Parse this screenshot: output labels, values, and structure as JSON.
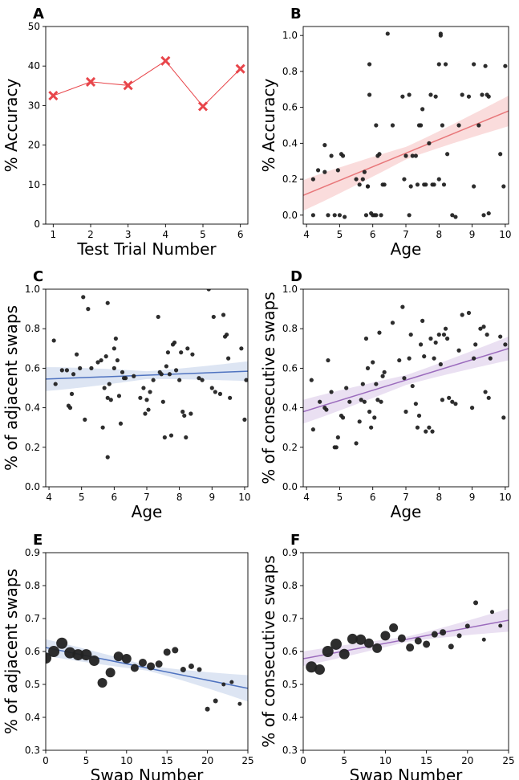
{
  "chart_data": [
    {
      "panel": "A",
      "type": "line",
      "xlabel": "Test Trial Number",
      "ylabel": "% Accuracy",
      "xlim": [
        0.8,
        6.2
      ],
      "ylim": [
        0,
        50
      ],
      "xticks": [
        1,
        2,
        3,
        4,
        5,
        6
      ],
      "yticks": [
        0,
        10,
        20,
        30,
        40,
        50
      ],
      "color": "#e8464b",
      "x": [
        1,
        2,
        3,
        4,
        5,
        6
      ],
      "y": [
        32.5,
        36.0,
        35.1,
        41.3,
        29.8,
        39.3
      ]
    },
    {
      "panel": "B",
      "type": "scatter",
      "xlabel": "Age",
      "ylabel": "% Accuracy",
      "xlim": [
        3.9,
        10.1
      ],
      "ylim": [
        -0.05,
        1.05
      ],
      "xticks": [
        4,
        5,
        6,
        7,
        8,
        9,
        10
      ],
      "yticks": [
        0.0,
        0.2,
        0.4,
        0.6,
        0.8,
        1.0
      ],
      "regression_color": "#e8777a",
      "band_color": "#f6c4c4",
      "regression": {
        "x0": 3.9,
        "y0": 0.11,
        "x1": 10.1,
        "y1": 0.58
      },
      "band_halfwidth": {
        "at_start": 0.085,
        "at_mid": 0.035,
        "at_end": 0.085
      },
      "points": [
        [
          4.2,
          0.2
        ],
        [
          4.2,
          0.0
        ],
        [
          4.35,
          0.25
        ],
        [
          4.55,
          0.39
        ],
        [
          4.55,
          0.24
        ],
        [
          4.65,
          0.0
        ],
        [
          4.75,
          0.33
        ],
        [
          4.85,
          0.0
        ],
        [
          4.95,
          0.25
        ],
        [
          5.0,
          0.0
        ],
        [
          5.05,
          0.34
        ],
        [
          5.1,
          0.33
        ],
        [
          5.15,
          -0.01
        ],
        [
          5.5,
          0.2
        ],
        [
          5.6,
          0.17
        ],
        [
          5.7,
          0.2
        ],
        [
          5.75,
          0.24
        ],
        [
          5.8,
          0.0
        ],
        [
          5.85,
          0.16
        ],
        [
          5.85,
          0.16
        ],
        [
          5.9,
          0.84
        ],
        [
          5.9,
          0.67
        ],
        [
          5.95,
          0.01
        ],
        [
          6.0,
          0.0
        ],
        [
          6.05,
          0.0
        ],
        [
          6.1,
          0.5
        ],
        [
          6.1,
          0.0
        ],
        [
          6.15,
          0.33
        ],
        [
          6.2,
          0.34
        ],
        [
          6.25,
          0.0
        ],
        [
          6.3,
          0.17
        ],
        [
          6.35,
          0.17
        ],
        [
          6.45,
          1.01
        ],
        [
          6.6,
          0.5
        ],
        [
          6.9,
          0.66
        ],
        [
          6.95,
          0.2
        ],
        [
          7.0,
          0.33
        ],
        [
          7.1,
          0.67
        ],
        [
          7.1,
          0.0
        ],
        [
          7.15,
          0.16
        ],
        [
          7.2,
          0.33
        ],
        [
          7.3,
          0.33
        ],
        [
          7.35,
          0.17
        ],
        [
          7.4,
          0.5
        ],
        [
          7.45,
          0.5
        ],
        [
          7.5,
          0.59
        ],
        [
          7.55,
          0.17
        ],
        [
          7.6,
          0.17
        ],
        [
          7.7,
          0.4
        ],
        [
          7.75,
          0.67
        ],
        [
          7.8,
          0.17
        ],
        [
          7.85,
          0.17
        ],
        [
          7.9,
          0.66
        ],
        [
          8.0,
          0.84
        ],
        [
          8.0,
          0.2
        ],
        [
          8.05,
          1.0
        ],
        [
          8.05,
          1.01
        ],
        [
          8.1,
          0.5
        ],
        [
          8.15,
          0.17
        ],
        [
          8.2,
          0.84
        ],
        [
          8.25,
          0.34
        ],
        [
          8.4,
          0.0
        ],
        [
          8.5,
          -0.01
        ],
        [
          8.6,
          0.5
        ],
        [
          8.7,
          0.67
        ],
        [
          8.9,
          0.66
        ],
        [
          9.05,
          0.84
        ],
        [
          9.05,
          0.16
        ],
        [
          9.2,
          0.5
        ],
        [
          9.3,
          0.67
        ],
        [
          9.35,
          0.0
        ],
        [
          9.4,
          0.83
        ],
        [
          9.45,
          0.67
        ],
        [
          9.5,
          0.66
        ],
        [
          9.5,
          0.01
        ],
        [
          9.85,
          0.34
        ],
        [
          9.95,
          0.16
        ],
        [
          10.0,
          0.83
        ]
      ]
    },
    {
      "panel": "C",
      "type": "scatter",
      "xlabel": "Age",
      "ylabel": "% of adjacent swaps",
      "xlim": [
        3.9,
        10.1
      ],
      "ylim": [
        0.0,
        1.0
      ],
      "xticks": [
        4,
        5,
        6,
        7,
        8,
        9,
        10
      ],
      "yticks": [
        0.0,
        0.2,
        0.4,
        0.6,
        0.8,
        1.0
      ],
      "regression_color": "#4f73c0",
      "band_color": "#c7d3eb",
      "regression": {
        "x0": 3.9,
        "y0": 0.545,
        "x1": 10.1,
        "y1": 0.585
      },
      "band_halfwidth": {
        "at_start": 0.06,
        "at_mid": 0.02,
        "at_end": 0.05
      },
      "points": [
        [
          4.15,
          0.74
        ],
        [
          4.2,
          0.52
        ],
        [
          4.4,
          0.59
        ],
        [
          4.55,
          0.59
        ],
        [
          4.6,
          0.41
        ],
        [
          4.65,
          0.4
        ],
        [
          4.7,
          0.47
        ],
        [
          4.75,
          0.57
        ],
        [
          4.85,
          0.67
        ],
        [
          4.95,
          0.6
        ],
        [
          5.05,
          0.96
        ],
        [
          5.1,
          0.34
        ],
        [
          5.2,
          0.9
        ],
        [
          5.3,
          0.6
        ],
        [
          5.5,
          0.63
        ],
        [
          5.6,
          0.64
        ],
        [
          5.65,
          0.3
        ],
        [
          5.7,
          0.5
        ],
        [
          5.75,
          0.66
        ],
        [
          5.8,
          0.15
        ],
        [
          5.8,
          0.93
        ],
        [
          5.8,
          0.45
        ],
        [
          5.85,
          0.52
        ],
        [
          5.9,
          0.44
        ],
        [
          6.0,
          0.6
        ],
        [
          6.0,
          0.7
        ],
        [
          6.05,
          0.75
        ],
        [
          6.1,
          0.64
        ],
        [
          6.15,
          0.46
        ],
        [
          6.2,
          0.32
        ],
        [
          6.25,
          0.58
        ],
        [
          6.3,
          0.55
        ],
        [
          6.35,
          0.55
        ],
        [
          6.6,
          0.56
        ],
        [
          6.8,
          0.45
        ],
        [
          6.9,
          0.5
        ],
        [
          6.95,
          0.37
        ],
        [
          7.0,
          0.44
        ],
        [
          7.05,
          0.39
        ],
        [
          7.1,
          0.48
        ],
        [
          7.2,
          0.54
        ],
        [
          7.35,
          0.86
        ],
        [
          7.4,
          0.58
        ],
        [
          7.45,
          0.57
        ],
        [
          7.5,
          0.43
        ],
        [
          7.55,
          0.25
        ],
        [
          7.6,
          0.61
        ],
        [
          7.65,
          0.68
        ],
        [
          7.7,
          0.57
        ],
        [
          7.75,
          0.26
        ],
        [
          7.8,
          0.72
        ],
        [
          7.85,
          0.73
        ],
        [
          7.9,
          0.59
        ],
        [
          8.0,
          0.54
        ],
        [
          8.05,
          0.68
        ],
        [
          8.1,
          0.38
        ],
        [
          8.15,
          0.36
        ],
        [
          8.2,
          0.25
        ],
        [
          8.25,
          0.7
        ],
        [
          8.35,
          0.37
        ],
        [
          8.4,
          0.67
        ],
        [
          8.6,
          0.55
        ],
        [
          8.7,
          0.54
        ],
        [
          8.9,
          1.0
        ],
        [
          9.0,
          0.5
        ],
        [
          9.05,
          0.86
        ],
        [
          9.1,
          0.48
        ],
        [
          9.25,
          0.47
        ],
        [
          9.35,
          0.87
        ],
        [
          9.4,
          0.76
        ],
        [
          9.45,
          0.77
        ],
        [
          9.5,
          0.65
        ],
        [
          9.55,
          0.45
        ],
        [
          9.9,
          0.7
        ],
        [
          10.0,
          0.34
        ],
        [
          10.05,
          0.54
        ]
      ]
    },
    {
      "panel": "D",
      "type": "scatter",
      "xlabel": "Age",
      "ylabel": "% of consecutive swaps",
      "xlim": [
        3.9,
        10.1
      ],
      "ylim": [
        0.0,
        1.0
      ],
      "xticks": [
        4,
        5,
        6,
        7,
        8,
        9,
        10
      ],
      "yticks": [
        0.0,
        0.2,
        0.4,
        0.6,
        0.8,
        1.0
      ],
      "regression_color": "#9b6bbd",
      "band_color": "#dccbea",
      "regression": {
        "x0": 3.9,
        "y0": 0.38,
        "x1": 10.1,
        "y1": 0.7
      },
      "band_halfwidth": {
        "at_start": 0.06,
        "at_mid": 0.025,
        "at_end": 0.06
      },
      "points": [
        [
          4.15,
          0.54
        ],
        [
          4.2,
          0.29
        ],
        [
          4.4,
          0.43
        ],
        [
          4.55,
          0.4
        ],
        [
          4.6,
          0.39
        ],
        [
          4.65,
          0.64
        ],
        [
          4.75,
          0.48
        ],
        [
          4.85,
          0.2
        ],
        [
          4.9,
          0.2
        ],
        [
          4.95,
          0.25
        ],
        [
          5.05,
          0.36
        ],
        [
          5.1,
          0.35
        ],
        [
          5.2,
          0.5
        ],
        [
          5.3,
          0.43
        ],
        [
          5.5,
          0.22
        ],
        [
          5.6,
          0.33
        ],
        [
          5.65,
          0.44
        ],
        [
          5.7,
          0.52
        ],
        [
          5.75,
          0.43
        ],
        [
          5.8,
          0.75
        ],
        [
          5.85,
          0.6
        ],
        [
          5.9,
          0.38
        ],
        [
          5.95,
          0.3
        ],
        [
          6.0,
          0.63
        ],
        [
          6.05,
          0.35
        ],
        [
          6.1,
          0.52
        ],
        [
          6.15,
          0.44
        ],
        [
          6.2,
          0.78
        ],
        [
          6.25,
          0.43
        ],
        [
          6.3,
          0.56
        ],
        [
          6.35,
          0.58
        ],
        [
          6.6,
          0.83
        ],
        [
          6.8,
          0.64
        ],
        [
          6.9,
          0.91
        ],
        [
          6.95,
          0.55
        ],
        [
          7.0,
          0.38
        ],
        [
          7.1,
          0.65
        ],
        [
          7.15,
          0.77
        ],
        [
          7.2,
          0.51
        ],
        [
          7.3,
          0.42
        ],
        [
          7.35,
          0.3
        ],
        [
          7.4,
          0.36
        ],
        [
          7.45,
          0.72
        ],
        [
          7.5,
          0.84
        ],
        [
          7.55,
          0.66
        ],
        [
          7.6,
          0.28
        ],
        [
          7.7,
          0.3
        ],
        [
          7.75,
          0.75
        ],
        [
          7.8,
          0.28
        ],
        [
          7.85,
          0.65
        ],
        [
          7.9,
          0.73
        ],
        [
          8.0,
          0.77
        ],
        [
          8.05,
          0.62
        ],
        [
          8.1,
          0.44
        ],
        [
          8.15,
          0.77
        ],
        [
          8.2,
          0.8
        ],
        [
          8.25,
          0.75
        ],
        [
          8.3,
          0.45
        ],
        [
          8.4,
          0.43
        ],
        [
          8.5,
          0.42
        ],
        [
          8.6,
          0.69
        ],
        [
          8.7,
          0.87
        ],
        [
          8.9,
          0.88
        ],
        [
          9.0,
          0.4
        ],
        [
          9.05,
          0.65
        ],
        [
          9.1,
          0.72
        ],
        [
          9.25,
          0.8
        ],
        [
          9.35,
          0.81
        ],
        [
          9.4,
          0.48
        ],
        [
          9.45,
          0.77
        ],
        [
          9.5,
          0.45
        ],
        [
          9.55,
          0.65
        ],
        [
          9.85,
          0.76
        ],
        [
          9.95,
          0.35
        ],
        [
          10.0,
          0.72
        ]
      ]
    },
    {
      "panel": "E",
      "type": "scatter",
      "xlabel": "Swap Number",
      "ylabel": "% of adjacent swaps",
      "xlim": [
        0,
        25
      ],
      "ylim": [
        0.3,
        0.9
      ],
      "xticks": [
        0,
        5,
        10,
        15,
        20,
        25
      ],
      "yticks": [
        0.3,
        0.4,
        0.5,
        0.6,
        0.7,
        0.8,
        0.9
      ],
      "regression_color": "#4f73c0",
      "band_color": "#c7d3eb",
      "regression": {
        "x0": 0,
        "y0": 0.612,
        "x1": 25,
        "y1": 0.488
      },
      "band_halfwidth": {
        "at_start": 0.025,
        "at_mid": 0.008,
        "at_end": 0.04
      },
      "points": [
        [
          0,
          0.58,
          7
        ],
        [
          1,
          0.6,
          7
        ],
        [
          2,
          0.625,
          7
        ],
        [
          3,
          0.596,
          7
        ],
        [
          4,
          0.59,
          7
        ],
        [
          5,
          0.59,
          7
        ],
        [
          6,
          0.572,
          6.5
        ],
        [
          7,
          0.505,
          6
        ],
        [
          8,
          0.536,
          6
        ],
        [
          9,
          0.585,
          6
        ],
        [
          10,
          0.578,
          6
        ],
        [
          11,
          0.55,
          5
        ],
        [
          12,
          0.566,
          5
        ],
        [
          13,
          0.555,
          5
        ],
        [
          14,
          0.562,
          4.5
        ],
        [
          15,
          0.598,
          4.5
        ],
        [
          16,
          0.604,
          4
        ],
        [
          17,
          0.545,
          3.5
        ],
        [
          18,
          0.555,
          3.5
        ],
        [
          19,
          0.545,
          3
        ],
        [
          20,
          0.425,
          3
        ],
        [
          21,
          0.45,
          3
        ],
        [
          22,
          0.5,
          2.5
        ],
        [
          23,
          0.507,
          2.5
        ],
        [
          24,
          0.441,
          2.5
        ]
      ]
    },
    {
      "panel": "F",
      "type": "scatter",
      "xlabel": "Swap Number",
      "ylabel": "% of consecutive swaps",
      "xlim": [
        0,
        25
      ],
      "ylim": [
        0.3,
        0.9
      ],
      "xticks": [
        0,
        5,
        10,
        15,
        20,
        25
      ],
      "yticks": [
        0.3,
        0.4,
        0.5,
        0.6,
        0.7,
        0.8,
        0.9
      ],
      "regression_color": "#9b6bbd",
      "band_color": "#dccbea",
      "regression": {
        "x0": 0,
        "y0": 0.578,
        "x1": 25,
        "y1": 0.695
      },
      "band_halfwidth": {
        "at_start": 0.022,
        "at_mid": 0.008,
        "at_end": 0.035
      },
      "points": [
        [
          1,
          0.553,
          7
        ],
        [
          2,
          0.545,
          6.5
        ],
        [
          3,
          0.6,
          7
        ],
        [
          4,
          0.622,
          7
        ],
        [
          5,
          0.592,
          6.5
        ],
        [
          6,
          0.638,
          6.5
        ],
        [
          7,
          0.636,
          6.5
        ],
        [
          8,
          0.625,
          6
        ],
        [
          9,
          0.61,
          6
        ],
        [
          10,
          0.648,
          6
        ],
        [
          11,
          0.672,
          5.5
        ],
        [
          12,
          0.64,
          5
        ],
        [
          13,
          0.612,
          5
        ],
        [
          14,
          0.632,
          4.5
        ],
        [
          15,
          0.622,
          4.5
        ],
        [
          16,
          0.652,
          4
        ],
        [
          17,
          0.658,
          4
        ],
        [
          18,
          0.615,
          3.5
        ],
        [
          19,
          0.648,
          3
        ],
        [
          20,
          0.677,
          3
        ],
        [
          21,
          0.748,
          3
        ],
        [
          22,
          0.636,
          2.5
        ],
        [
          23,
          0.72,
          2.5
        ],
        [
          24,
          0.678,
          2.5
        ]
      ]
    }
  ]
}
